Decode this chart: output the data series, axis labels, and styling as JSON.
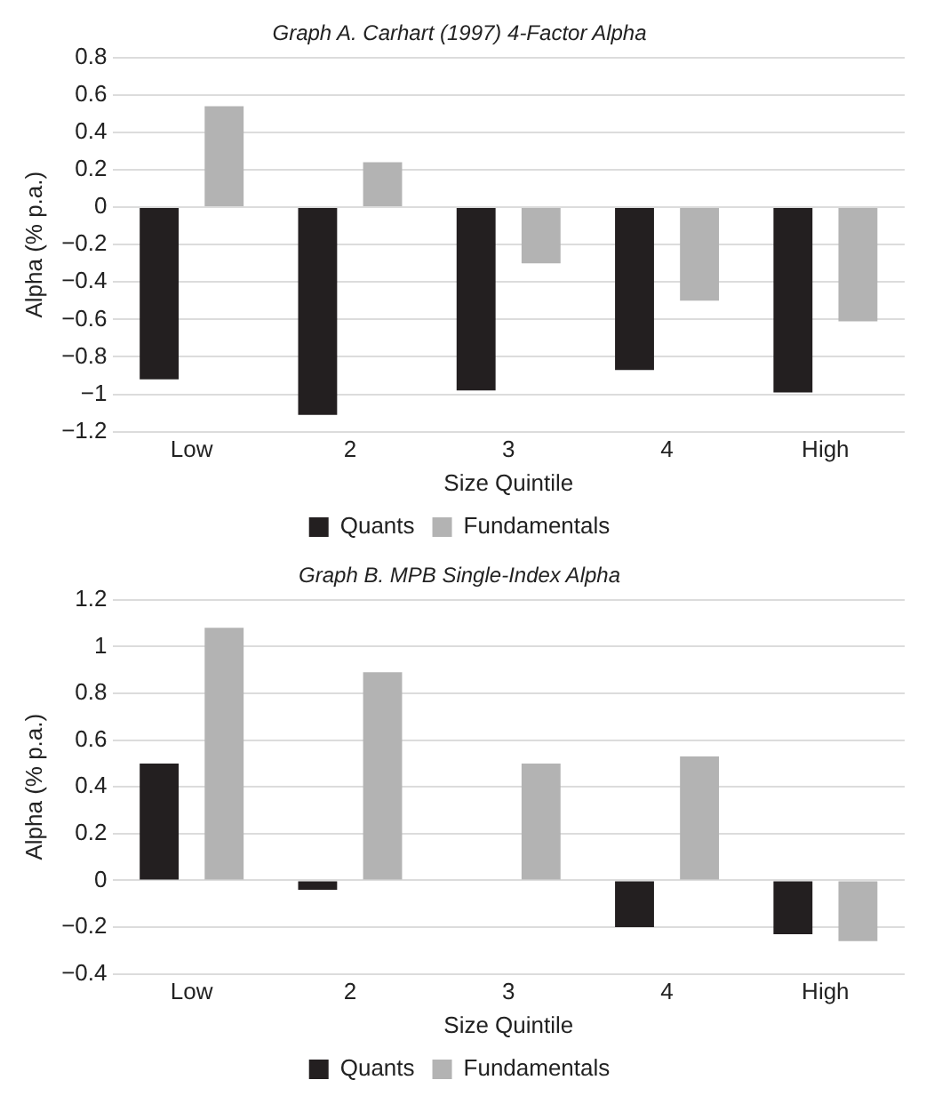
{
  "chart_data": [
    {
      "type": "bar",
      "title": "Graph A. Carhart (1997) 4-Factor Alpha",
      "xlabel": "Size Quintile",
      "ylabel": "Alpha (% p.a.)",
      "categories": [
        "Low",
        "2",
        "3",
        "4",
        "High"
      ],
      "series": [
        {
          "name": "Quants",
          "color": "#231f20",
          "values": [
            -0.92,
            -1.11,
            -0.98,
            -0.87,
            -0.99
          ]
        },
        {
          "name": "Fundamentals",
          "color": "#b3b3b3",
          "values": [
            0.54,
            0.24,
            -0.3,
            -0.5,
            -0.61
          ]
        }
      ],
      "ylim": [
        -1.2,
        0.8
      ],
      "yticks": [
        {
          "value": -1.2,
          "label": "−1.2"
        },
        {
          "value": -1,
          "label": "−1"
        },
        {
          "value": -0.8,
          "label": "−0.8"
        },
        {
          "value": -0.6,
          "label": "−0.6"
        },
        {
          "value": -0.4,
          "label": "−0.4"
        },
        {
          "value": -0.2,
          "label": "−0.2"
        },
        0,
        0.2,
        0.4,
        0.6,
        0.8
      ],
      "grid": "y",
      "legend": "bottom"
    },
    {
      "type": "bar",
      "title": "Graph B. MPB Single-Index Alpha",
      "xlabel": "Size Quintile",
      "ylabel": "Alpha (% p.a.)",
      "categories": [
        "Low",
        "2",
        "3",
        "4",
        "High"
      ],
      "series": [
        {
          "name": "Quants",
          "color": "#231f20",
          "values": [
            0.5,
            -0.04,
            0,
            -0.2,
            -0.23
          ]
        },
        {
          "name": "Fundamentals",
          "color": "#b3b3b3",
          "values": [
            1.08,
            0.89,
            0.5,
            0.53,
            -0.26
          ]
        }
      ],
      "ylim": [
        -0.4,
        1.2
      ],
      "yticks": [
        {
          "value": -0.4,
          "label": "−0.4"
        },
        {
          "value": -0.2,
          "label": "−0.2"
        },
        0,
        0.2,
        0.4,
        0.6,
        0.8,
        1,
        1.2
      ],
      "grid": "y",
      "legend": "bottom"
    }
  ]
}
